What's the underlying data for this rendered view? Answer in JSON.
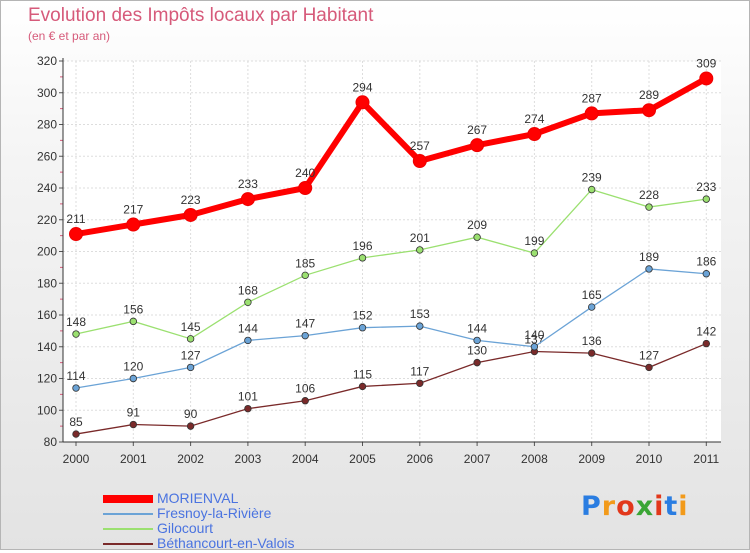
{
  "title": "Evolution des Impôts locaux par Habitant",
  "subtitle": "(en € et par an)",
  "logo": {
    "text": "Proxiti",
    "colors": [
      "#2a7de1",
      "#f29a1a",
      "#e2381b",
      "#3aa535",
      "#e2381b",
      "#2a7de1",
      "#f29a1a"
    ]
  },
  "chart_data": {
    "type": "line",
    "title": "Evolution des Impôts locaux par Habitant",
    "subtitle": "(en € et par an)",
    "x": [
      "2000",
      "2001",
      "2002",
      "2003",
      "2004",
      "2005",
      "2006",
      "2007",
      "2008",
      "2009",
      "2010",
      "2011"
    ],
    "yticks": [
      80,
      100,
      120,
      140,
      160,
      180,
      200,
      220,
      240,
      260,
      280,
      300,
      320
    ],
    "ylim": [
      80,
      320
    ],
    "grid": true,
    "legend_position": "bottom-left",
    "series": [
      {
        "name": "MORIENVAL",
        "color": "#ff0000",
        "values": [
          211,
          217,
          223,
          233,
          240,
          294,
          257,
          267,
          274,
          287,
          289,
          309
        ]
      },
      {
        "name": "Fresnoy-la-Rivière",
        "color": "#6ba3d6",
        "values": [
          114,
          120,
          127,
          144,
          147,
          152,
          153,
          144,
          140,
          165,
          189,
          186
        ]
      },
      {
        "name": "Gilocourt",
        "color": "#9be070",
        "values": [
          148,
          156,
          145,
          168,
          185,
          196,
          201,
          209,
          199,
          239,
          228,
          233
        ]
      },
      {
        "name": "Béthancourt-en-Valois",
        "color": "#7a2a2a",
        "values": [
          85,
          91,
          90,
          101,
          106,
          115,
          117,
          130,
          137,
          136,
          127,
          142
        ]
      }
    ]
  }
}
